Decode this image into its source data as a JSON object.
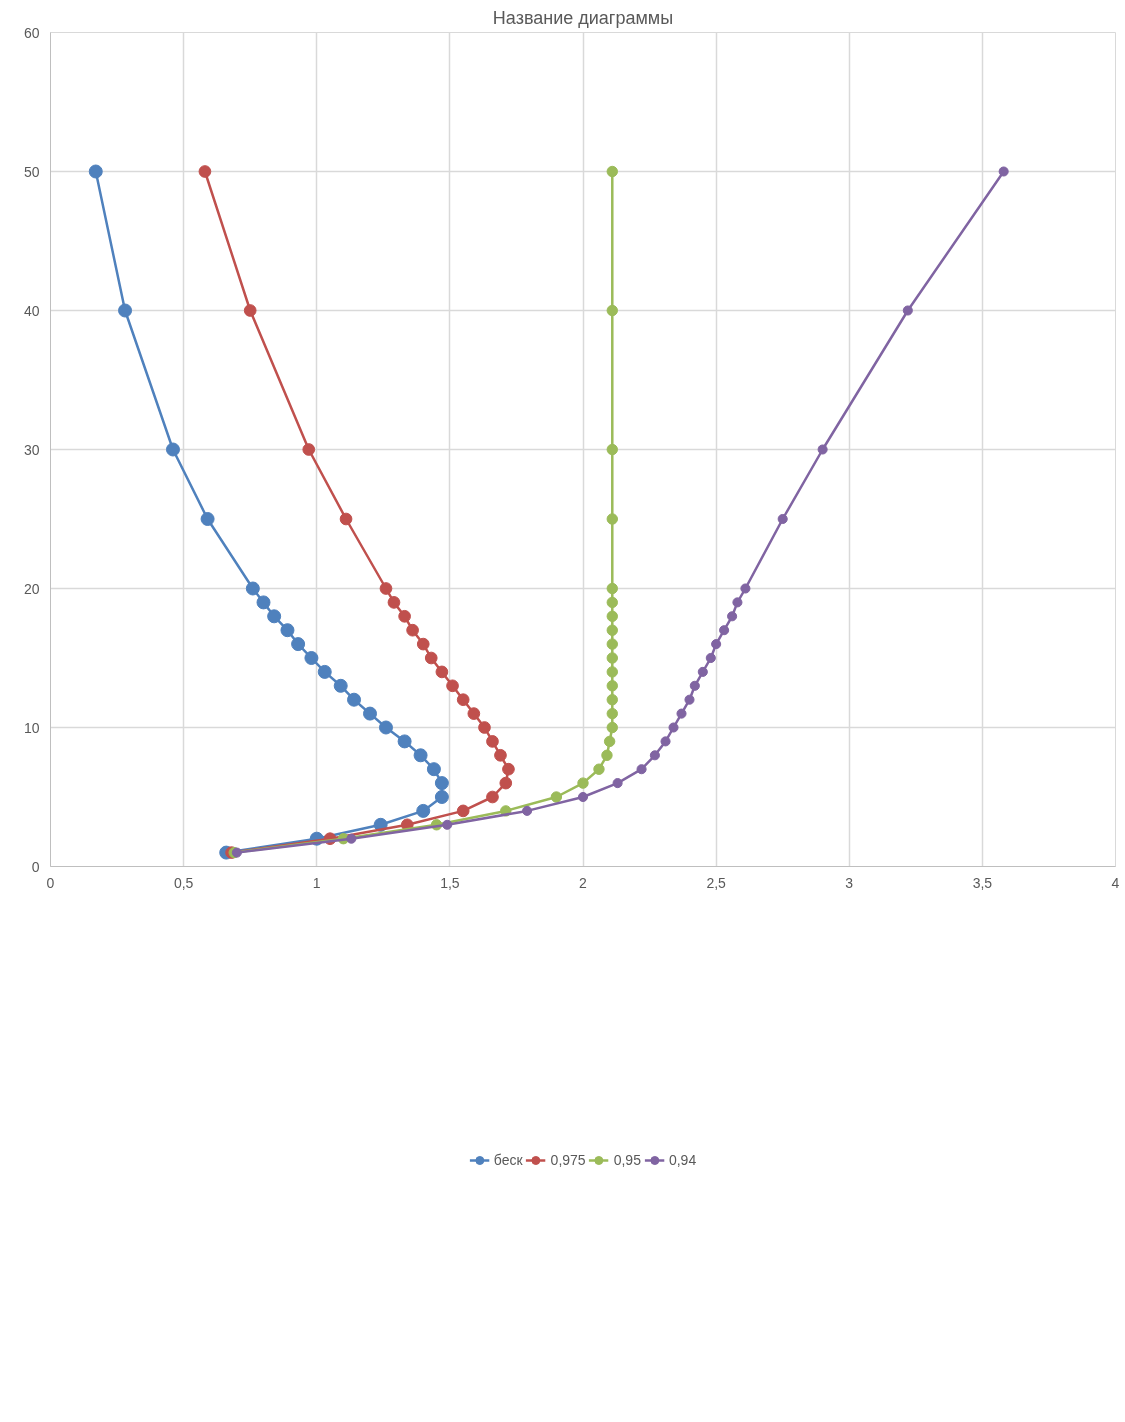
{
  "chart_data": {
    "type": "line",
    "title": "Название диаграммы",
    "xlim": [
      0,
      4
    ],
    "xticks": [
      0,
      {
        "value": 0.5,
        "label": "0,5"
      },
      1,
      {
        "value": 1.5,
        "label": "1,5"
      },
      2,
      {
        "value": 2.5,
        "label": "2,5"
      },
      3,
      {
        "value": 3.5,
        "label": "3,5"
      },
      4
    ],
    "ylim": [
      0,
      60
    ],
    "yticks": [
      0,
      10,
      20,
      30,
      40,
      50,
      60
    ],
    "grid": true,
    "legend": "bottom",
    "marker": "circle",
    "line_style": "solid",
    "series": [
      {
        "name": "беск",
        "color": "#4f81bd",
        "x": [
          0.66,
          1.0,
          1.24,
          1.4,
          1.47,
          1.47,
          1.44,
          1.39,
          1.33,
          1.26,
          1.2,
          1.14,
          1.09,
          1.03,
          0.98,
          0.93,
          0.89,
          0.84,
          0.8,
          0.76,
          0.59,
          0.46,
          0.28,
          0.17
        ],
        "values": [
          1,
          2,
          3,
          4,
          5,
          6,
          7,
          8,
          9,
          10,
          11,
          12,
          13,
          14,
          15,
          16,
          17,
          18,
          19,
          20,
          25,
          30,
          40,
          50
        ]
      },
      {
        "name": "0,975",
        "color": "#c0504d",
        "x": [
          0.68,
          1.05,
          1.34,
          1.55,
          1.66,
          1.71,
          1.72,
          1.69,
          1.66,
          1.63,
          1.59,
          1.55,
          1.51,
          1.47,
          1.43,
          1.4,
          1.36,
          1.33,
          1.29,
          1.26,
          1.11,
          0.97,
          0.75,
          0.58
        ],
        "values": [
          1,
          2,
          3,
          4,
          5,
          6,
          7,
          8,
          9,
          10,
          11,
          12,
          13,
          14,
          15,
          16,
          17,
          18,
          19,
          20,
          25,
          30,
          40,
          50
        ]
      },
      {
        "name": "0,95",
        "color": "#9bbb59",
        "x": [
          0.69,
          1.1,
          1.45,
          1.71,
          1.9,
          2.0,
          2.06,
          2.09,
          2.1,
          2.11,
          2.11,
          2.11,
          2.11,
          2.11,
          2.11,
          2.11,
          2.11,
          2.11,
          2.11,
          2.11,
          2.11,
          2.11,
          2.11,
          2.11
        ],
        "values": [
          1,
          2,
          3,
          4,
          5,
          6,
          7,
          8,
          9,
          10,
          11,
          12,
          13,
          14,
          15,
          16,
          17,
          18,
          19,
          20,
          25,
          30,
          40,
          50
        ]
      },
      {
        "name": "0,94",
        "color": "#8064a2",
        "x": [
          0.7,
          1.13,
          1.49,
          1.79,
          2.0,
          2.13,
          2.22,
          2.27,
          2.31,
          2.34,
          2.37,
          2.4,
          2.42,
          2.45,
          2.48,
          2.5,
          2.53,
          2.56,
          2.58,
          2.61,
          2.75,
          2.9,
          3.22,
          3.58
        ],
        "values": [
          1,
          2,
          3,
          4,
          5,
          6,
          7,
          8,
          9,
          10,
          11,
          12,
          13,
          14,
          15,
          16,
          17,
          18,
          19,
          20,
          25,
          30,
          40,
          50
        ]
      }
    ]
  }
}
